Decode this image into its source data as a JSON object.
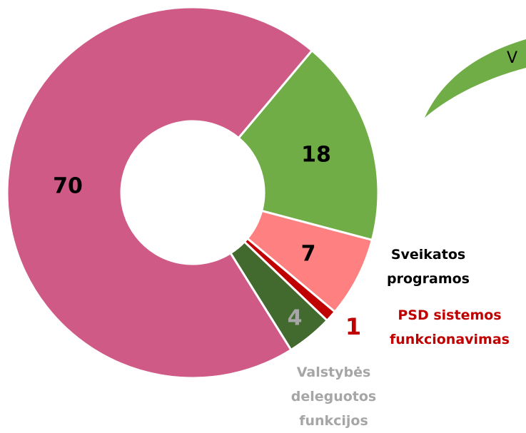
{
  "chart_data": {
    "type": "donut",
    "callout": "V",
    "categories": [
      null,
      "Sveikatos programos",
      "PSD sistemos funkcionavimas",
      "Valstybės deleguotos funkcijos",
      null
    ],
    "values": [
      18,
      7,
      1,
      4,
      70
    ],
    "colors": [
      "#70ad47",
      "#ff8080",
      "#c00000",
      "#426a2e",
      "#d05a86"
    ],
    "label_colors": [
      "#000000",
      "#000000",
      "#c00000",
      "#a6a6a6",
      "#000000"
    ],
    "start_angle": 40
  }
}
